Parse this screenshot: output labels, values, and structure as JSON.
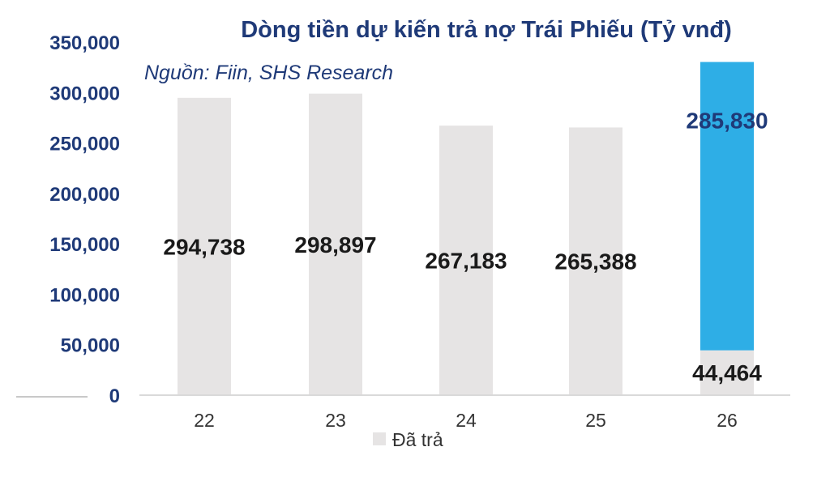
{
  "chart_data": {
    "type": "bar",
    "title": "Dòng tiền dự kiến trả nợ Trái Phiếu (Tỷ vnđ)",
    "subtitle": "Nguồn: Fiin, SHS Research",
    "categories": [
      "22",
      "23",
      "24",
      "25",
      "26"
    ],
    "ylim": [
      0,
      350000
    ],
    "yticks": [
      "0",
      "50,000",
      "100,000",
      "150,000",
      "200,000",
      "250,000",
      "300,000",
      "350,000"
    ],
    "series": [
      {
        "name": "Đã trả",
        "values": [
          294738,
          298897,
          267183,
          265388,
          44464
        ],
        "labels": [
          "294,738",
          "298,897",
          "267,183",
          "265,388",
          "44,464"
        ],
        "color": "#e6e4e4"
      },
      {
        "values": [
          0,
          0,
          0,
          0,
          285830
        ],
        "labels": [
          "",
          "",
          "",
          "",
          "285,830"
        ],
        "color": "#2eaee6"
      }
    ],
    "legend": "bottom",
    "grid": false
  }
}
